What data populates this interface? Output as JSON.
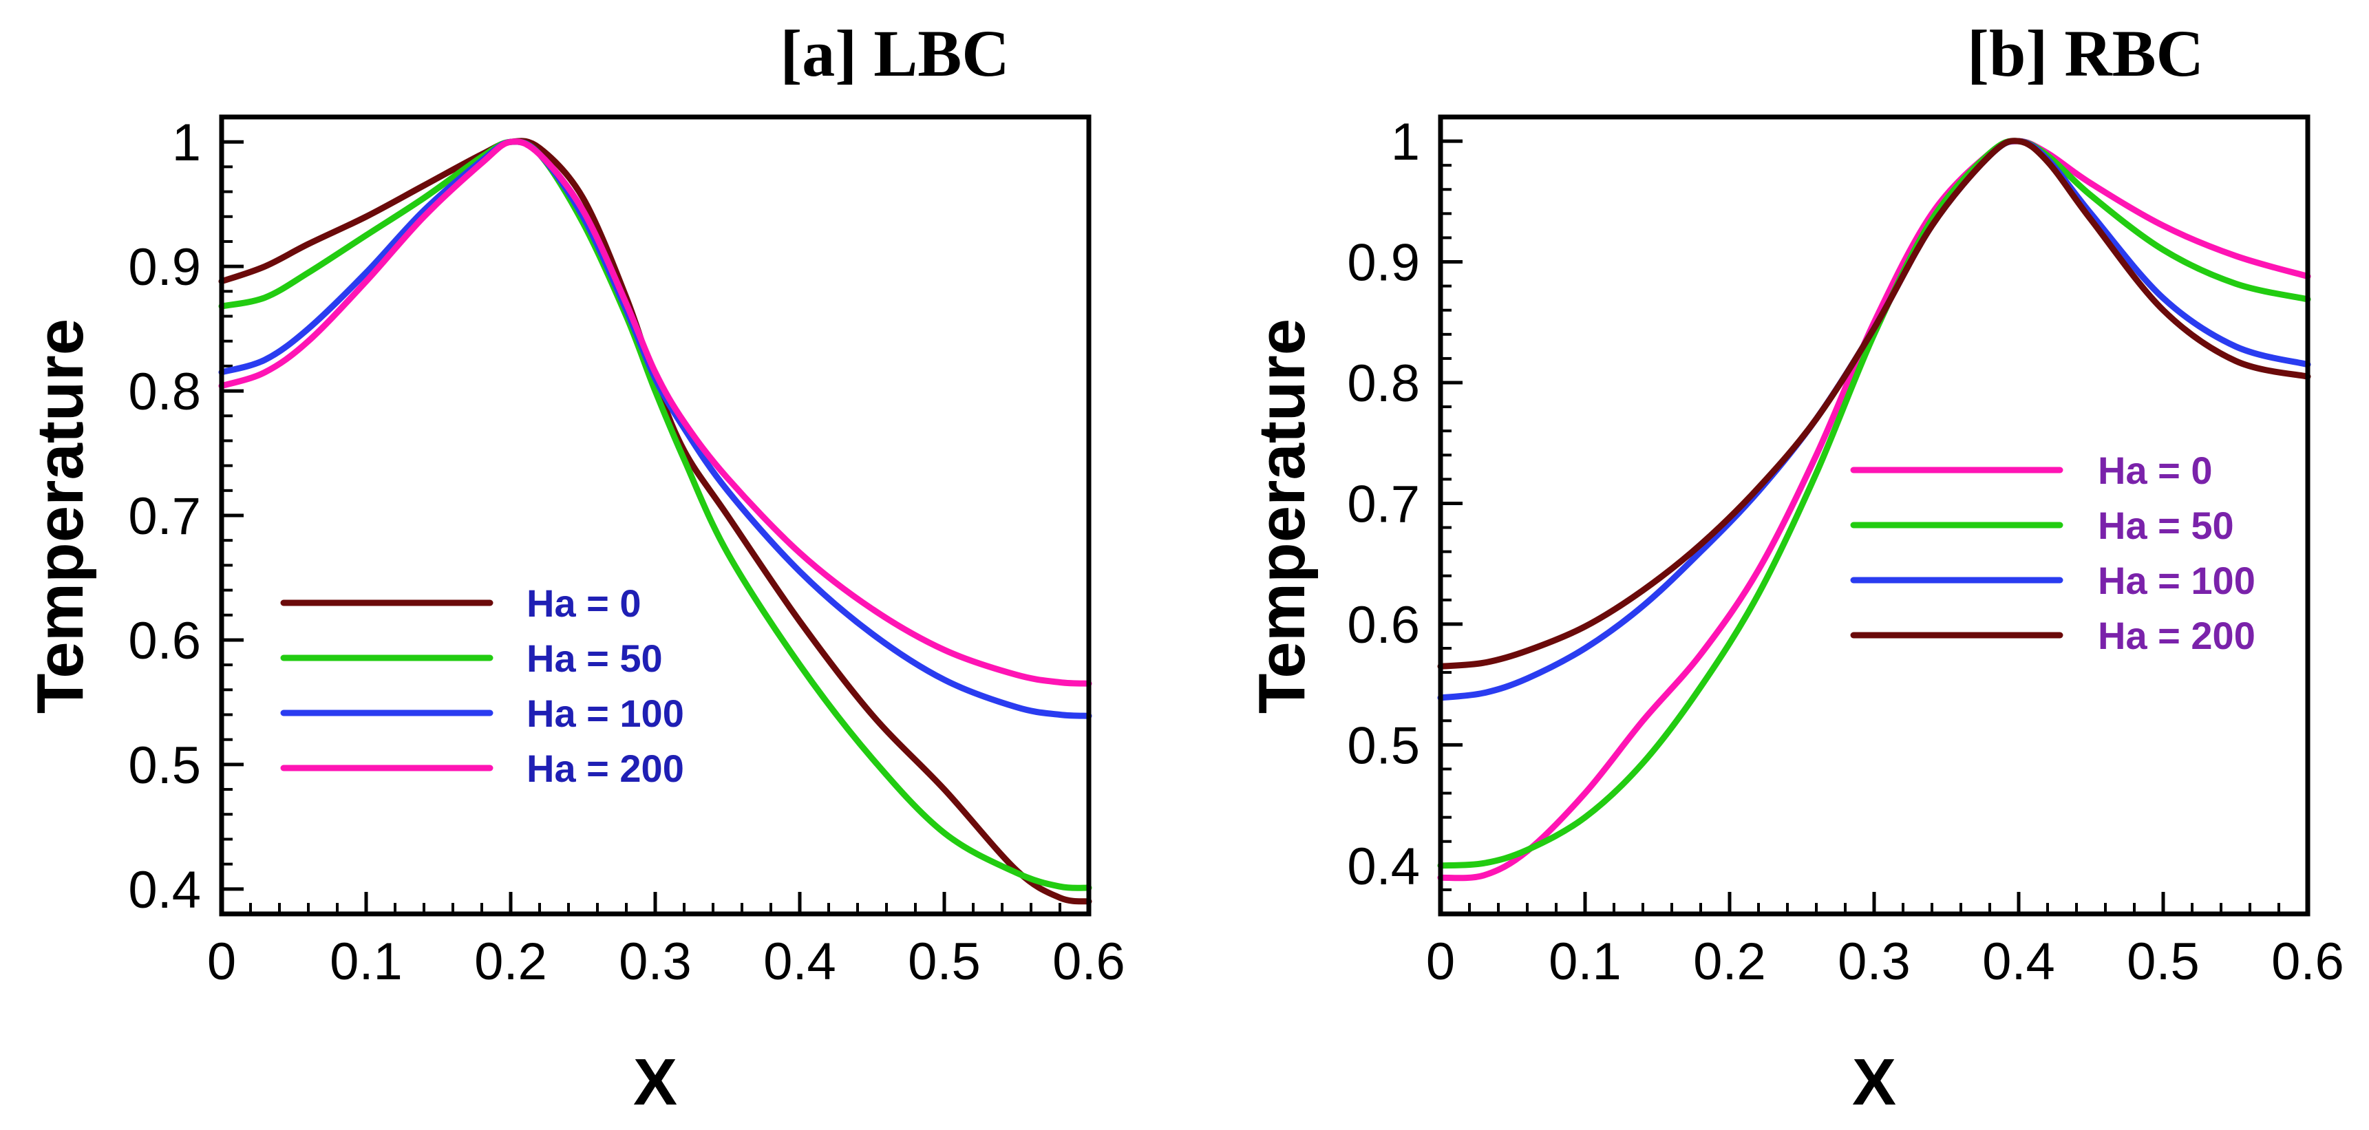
{
  "chart_data": [
    {
      "type": "line",
      "title": "[a] LBC",
      "xlabel": "X",
      "ylabel": "Temperature",
      "xlim": [
        0,
        0.6
      ],
      "ylim": [
        0.38,
        1.02
      ],
      "xticks": [
        0,
        0.1,
        0.2,
        0.3,
        0.4,
        0.5,
        0.6
      ],
      "xtick_labels": [
        "0",
        "0.1",
        "0.2",
        "0.3",
        "0.4",
        "0.5",
        "0.6"
      ],
      "yticks": [
        0.4,
        0.5,
        0.6,
        0.7,
        0.8,
        0.9,
        1.0
      ],
      "ytick_labels": [
        "0.4",
        "0.5",
        "0.6",
        "0.7",
        "0.8",
        "0.9",
        "1"
      ],
      "legend_position": "center-left",
      "legend_text_color": "#1f1fb4",
      "series": [
        {
          "name": "Ha = 0",
          "color": "#6b0a0a",
          "x": [
            0,
            0.03,
            0.06,
            0.1,
            0.14,
            0.18,
            0.2,
            0.22,
            0.25,
            0.28,
            0.3,
            0.32,
            0.35,
            0.4,
            0.45,
            0.5,
            0.55,
            0.58,
            0.6
          ],
          "y": [
            0.888,
            0.9,
            0.918,
            0.94,
            0.965,
            0.99,
            1.0,
            0.995,
            0.955,
            0.875,
            0.808,
            0.752,
            0.7,
            0.615,
            0.54,
            0.48,
            0.415,
            0.393,
            0.39
          ]
        },
        {
          "name": "Ha = 50",
          "color": "#22cc11",
          "x": [
            0,
            0.03,
            0.06,
            0.1,
            0.14,
            0.18,
            0.2,
            0.22,
            0.25,
            0.28,
            0.3,
            0.32,
            0.35,
            0.4,
            0.45,
            0.5,
            0.55,
            0.58,
            0.6
          ],
          "y": [
            0.868,
            0.875,
            0.895,
            0.925,
            0.955,
            0.988,
            1.0,
            0.99,
            0.935,
            0.86,
            0.8,
            0.745,
            0.67,
            0.58,
            0.505,
            0.445,
            0.413,
            0.402,
            0.401
          ]
        },
        {
          "name": "Ha = 100",
          "color": "#2a3cf0",
          "x": [
            0,
            0.03,
            0.06,
            0.1,
            0.14,
            0.18,
            0.2,
            0.22,
            0.25,
            0.28,
            0.3,
            0.32,
            0.35,
            0.4,
            0.45,
            0.5,
            0.55,
            0.58,
            0.6
          ],
          "y": [
            0.815,
            0.825,
            0.85,
            0.895,
            0.945,
            0.985,
            1.0,
            0.99,
            0.94,
            0.865,
            0.81,
            0.77,
            0.72,
            0.655,
            0.605,
            0.568,
            0.546,
            0.54,
            0.539
          ]
        },
        {
          "name": "Ha = 200",
          "color": "#ff14b4",
          "x": [
            0,
            0.03,
            0.06,
            0.1,
            0.14,
            0.18,
            0.2,
            0.22,
            0.25,
            0.28,
            0.3,
            0.32,
            0.35,
            0.4,
            0.45,
            0.5,
            0.55,
            0.58,
            0.6
          ],
          "y": [
            0.804,
            0.815,
            0.84,
            0.888,
            0.94,
            0.983,
            1.0,
            0.99,
            0.945,
            0.87,
            0.815,
            0.775,
            0.73,
            0.67,
            0.625,
            0.592,
            0.572,
            0.566,
            0.565
          ]
        }
      ]
    },
    {
      "type": "line",
      "title": "[b] RBC",
      "xlabel": "X",
      "ylabel": "Temperature",
      "xlim": [
        0,
        0.6
      ],
      "ylim": [
        0.36,
        1.02
      ],
      "xticks": [
        0,
        0.1,
        0.2,
        0.3,
        0.4,
        0.5,
        0.6
      ],
      "xtick_labels": [
        "0",
        "0.1",
        "0.2",
        "0.3",
        "0.4",
        "0.5",
        "0.6"
      ],
      "yticks": [
        0.4,
        0.5,
        0.6,
        0.7,
        0.8,
        0.9,
        1.0
      ],
      "ytick_labels": [
        "0.4",
        "0.5",
        "0.6",
        "0.7",
        "0.8",
        "0.9",
        "1"
      ],
      "legend_position": "center-right",
      "legend_text_color": "#7a22aa",
      "series": [
        {
          "name": "Ha = 0",
          "color": "#ff14b4",
          "x": [
            0,
            0.03,
            0.06,
            0.1,
            0.14,
            0.18,
            0.22,
            0.26,
            0.3,
            0.34,
            0.38,
            0.4,
            0.42,
            0.45,
            0.5,
            0.55,
            0.6
          ],
          "y": [
            0.39,
            0.392,
            0.412,
            0.46,
            0.52,
            0.575,
            0.645,
            0.74,
            0.85,
            0.94,
            0.99,
            1.0,
            0.99,
            0.965,
            0.93,
            0.905,
            0.888
          ]
        },
        {
          "name": "Ha = 50",
          "color": "#22cc11",
          "x": [
            0,
            0.03,
            0.06,
            0.1,
            0.14,
            0.18,
            0.22,
            0.26,
            0.3,
            0.34,
            0.38,
            0.4,
            0.42,
            0.45,
            0.5,
            0.55,
            0.6
          ],
          "y": [
            0.4,
            0.402,
            0.413,
            0.44,
            0.485,
            0.548,
            0.625,
            0.725,
            0.84,
            0.935,
            0.99,
            1.0,
            0.988,
            0.955,
            0.91,
            0.882,
            0.869
          ]
        },
        {
          "name": "Ha = 100",
          "color": "#2a3cf0",
          "x": [
            0,
            0.03,
            0.06,
            0.1,
            0.14,
            0.18,
            0.22,
            0.26,
            0.3,
            0.34,
            0.38,
            0.4,
            0.42,
            0.45,
            0.5,
            0.55,
            0.6
          ],
          "y": [
            0.539,
            0.543,
            0.555,
            0.58,
            0.615,
            0.66,
            0.71,
            0.77,
            0.845,
            0.93,
            0.988,
            1.0,
            0.985,
            0.94,
            0.87,
            0.83,
            0.815
          ]
        },
        {
          "name": "Ha = 200",
          "color": "#6b0a0a",
          "x": [
            0,
            0.03,
            0.06,
            0.1,
            0.14,
            0.18,
            0.22,
            0.26,
            0.3,
            0.34,
            0.38,
            0.4,
            0.42,
            0.45,
            0.5,
            0.55,
            0.6
          ],
          "y": [
            0.565,
            0.568,
            0.578,
            0.598,
            0.628,
            0.666,
            0.713,
            0.77,
            0.845,
            0.93,
            0.988,
            1.0,
            0.983,
            0.935,
            0.86,
            0.818,
            0.805
          ]
        }
      ]
    }
  ]
}
